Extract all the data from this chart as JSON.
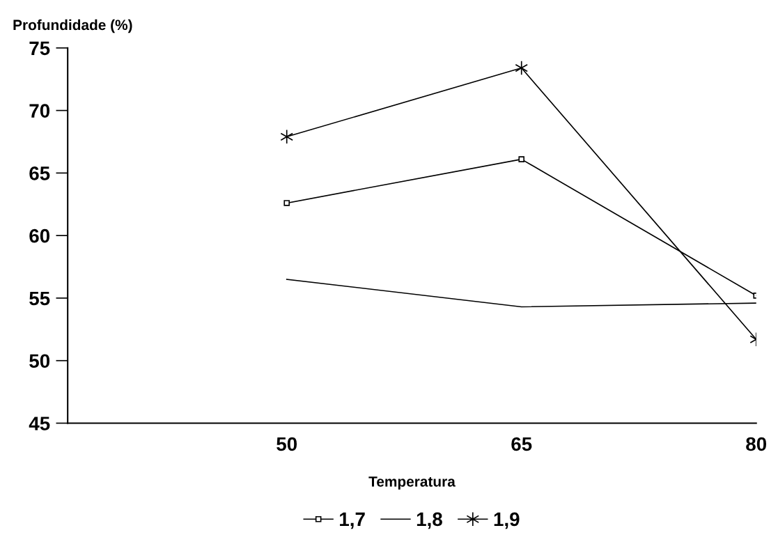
{
  "chart_data": {
    "type": "line",
    "xlabel": "Temperatura",
    "ylabel": "Profundidade (%)",
    "x": [
      50,
      65,
      80
    ],
    "series": [
      {
        "name": "1,7",
        "color": "#000000",
        "marker": "square",
        "values": [
          62.6,
          66.1,
          55.2
        ]
      },
      {
        "name": "1,8",
        "color": "#000000",
        "marker": "none",
        "values": [
          56.5,
          54.3,
          54.6
        ]
      },
      {
        "name": "1,9",
        "color": "#000000",
        "marker": "cross",
        "values": [
          67.9,
          73.4,
          51.7
        ]
      }
    ],
    "xlim": [
      36,
      80
    ],
    "xticks": [
      50,
      65,
      80
    ],
    "ylim": [
      45,
      75
    ],
    "yticks": [
      45,
      50,
      55,
      60,
      65,
      70,
      75
    ],
    "grid": false,
    "legend": "bottom",
    "line_style": "solid"
  }
}
